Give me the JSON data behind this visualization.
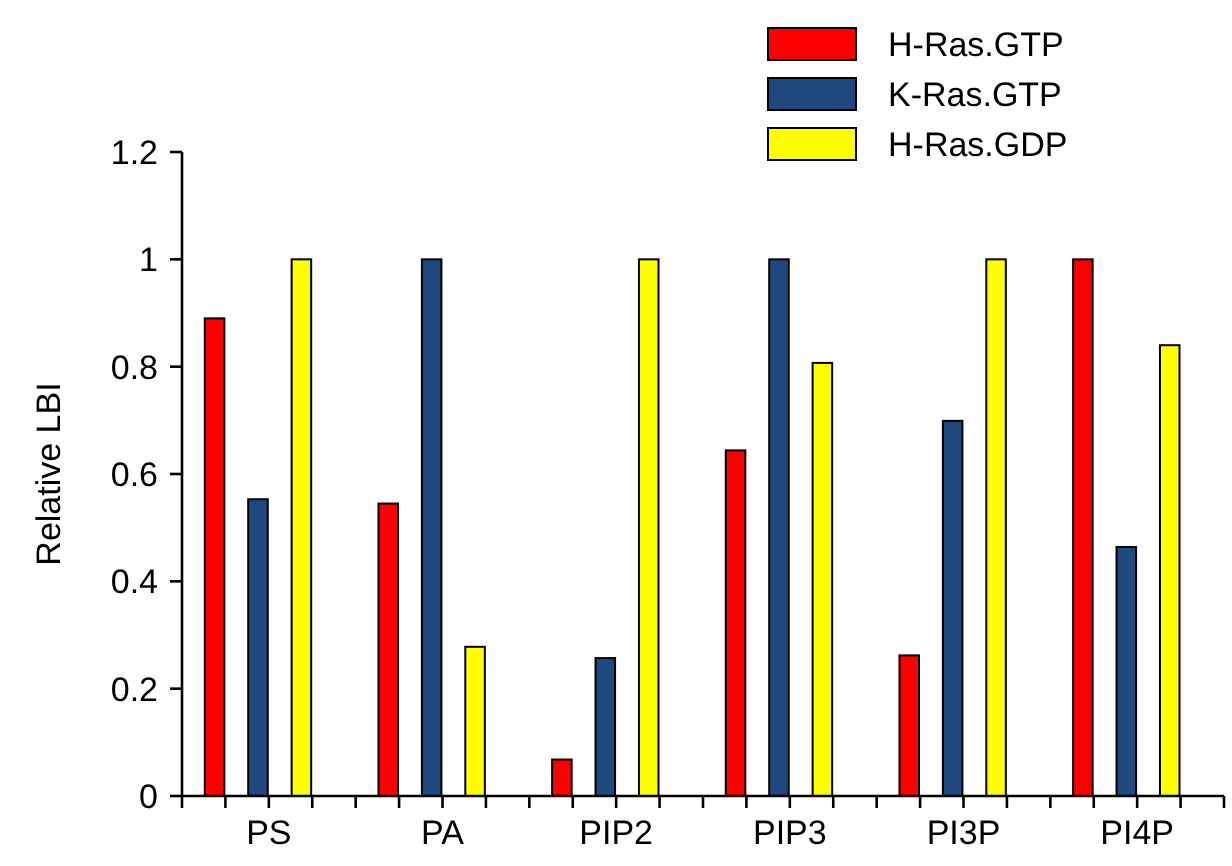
{
  "chart_data": {
    "type": "bar",
    "ylabel": "Relative LBI",
    "categories": [
      "PS",
      "PA",
      "PIP2",
      "PIP3",
      "PI3P",
      "PI4P"
    ],
    "series": [
      {
        "name": "H-Ras.GTP",
        "color": "#ff0000",
        "values": [
          0.89,
          0.545,
          0.068,
          0.644,
          0.262,
          1
        ]
      },
      {
        "name": "K-Ras.GTP",
        "color": "#1f497d",
        "values": [
          0.553,
          1,
          0.257,
          1,
          0.699,
          0.464
        ]
      },
      {
        "name": "H-Ras.GDP",
        "color": "#ffff00",
        "values": [
          1,
          0.278,
          1,
          0.807,
          1,
          0.84
        ]
      }
    ],
    "ylim": [
      0,
      1.2
    ],
    "yticks": [
      0,
      0.2,
      0.4,
      0.6,
      0.8,
      1,
      1.2
    ],
    "grid": false,
    "legend": "top right"
  }
}
